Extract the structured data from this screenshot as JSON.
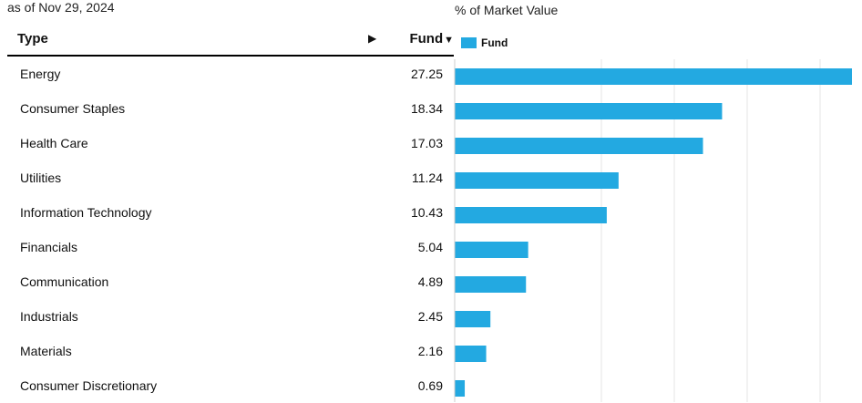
{
  "header": {
    "as_of": "as of Nov 29, 2024",
    "chart_caption": "% of Market Value"
  },
  "table": {
    "col_type": "Type",
    "col_fund": "Fund",
    "sort_arrow": "▶",
    "sort_desc": "▼"
  },
  "legend": {
    "label": "Fund"
  },
  "colors": {
    "bar": "#23a9e1",
    "grid": "#e6e6e6",
    "axis": "#cccccc"
  },
  "chart_data": {
    "type": "bar",
    "orientation": "horizontal",
    "title": "% of Market Value",
    "categories": [
      "Energy",
      "Consumer Staples",
      "Health Care",
      "Utilities",
      "Information Technology",
      "Financials",
      "Communication",
      "Industrials",
      "Materials",
      "Consumer Discretionary"
    ],
    "series": [
      {
        "name": "Fund",
        "values": [
          27.25,
          18.34,
          17.03,
          11.24,
          10.43,
          5.04,
          4.89,
          2.45,
          2.16,
          0.69
        ]
      }
    ],
    "value_labels": [
      "27.25",
      "18.34",
      "17.03",
      "11.24",
      "10.43",
      "5.04",
      "4.89",
      "2.45",
      "2.16",
      "0.69"
    ],
    "xlim": [
      0,
      27.25
    ],
    "grid": true,
    "legend_position": "top-left"
  }
}
